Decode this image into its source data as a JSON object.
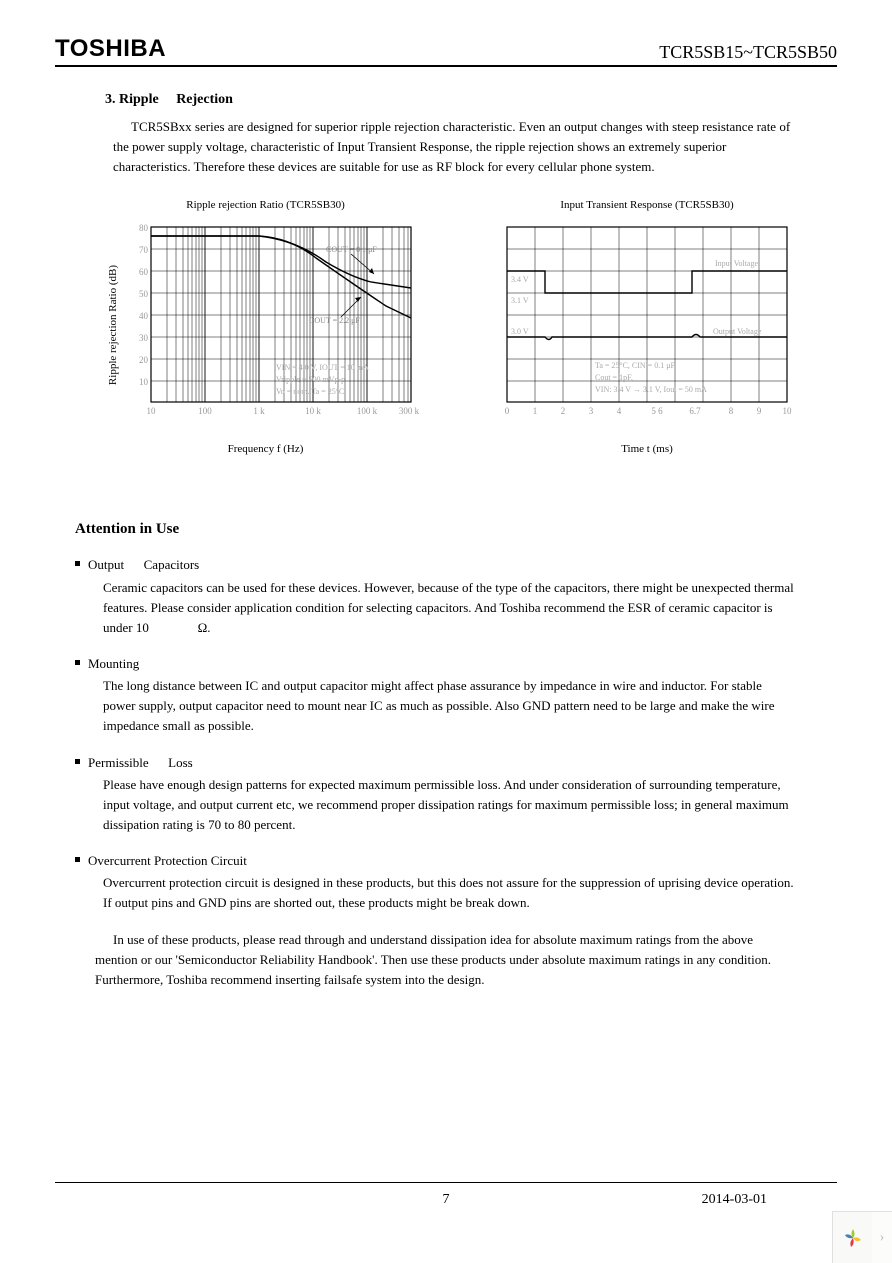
{
  "header": {
    "logo": "TOSHIBA",
    "part": "TCR5SB15~TCR5SB50"
  },
  "section": {
    "number": "3.",
    "title_a": "Ripple",
    "title_b": "Rejection",
    "intro": "TCR5SBxx series are designed for superior ripple rejection characteristic.  Even an output changes with steep resistance rate of the power supply voltage, characteristic of Input Transient Response, the ripple rejection shows an extremely superior characteristics.   Therefore these devices are suitable for use as RF block for every cellular phone system."
  },
  "chart1": {
    "title": "Ripple rejection Ratio (TCR5SB30)",
    "ylabel": "Ripple rejection Ratio (dB)",
    "xlabel": "Frequency f  (Hz)",
    "yticks": [
      "80",
      "70",
      "60",
      "50",
      "40",
      "30",
      "20",
      "10"
    ],
    "xticks": [
      "10",
      "100",
      "1 k",
      "10 k",
      "100 k",
      "300 k"
    ],
    "notes": [
      "VIN = 4.0 V, IOUT = 10 mA",
      "Vripple = 500 mVp-p",
      "Vo = nom.  Ta = 25°C"
    ],
    "arrow1": "COUT = 0.1 μF",
    "arrow2": "COUT = 2.2 μF",
    "curve1_color": "#000000",
    "curve2_color": "#000000",
    "grid_color": "#000000",
    "bg": "#ffffff"
  },
  "chart2": {
    "title": "Input Transient Response (TCR5SB30)",
    "xlabel": "Time  t  (ms)",
    "xticks": [
      "0",
      "1",
      "2",
      "3",
      "4",
      "5 6",
      "6.7",
      "8",
      "9",
      "10"
    ],
    "labels": {
      "input": "Input Voltage",
      "output": "Output Voltage",
      "v34": "3.4 V",
      "v31": "3.1 V",
      "v30": "3.0 V"
    },
    "notes": [
      "Ta = 25°C, CIN = 0.1 μF",
      "Cout = 1pF,",
      "VIN: 3.4 V → 3.1 V, Iout = 50 mA"
    ],
    "grid_color": "#000000",
    "line_color": "#000000",
    "bg": "#ffffff"
  },
  "attention": {
    "heading": "Attention in Use",
    "items": [
      {
        "label_a": "Output",
        "label_b": "Capacitors",
        "body": "Ceramic capacitors can be used for these devices.   However, because of the type of the capacitors, there might be unexpected thermal features.  Please consider application condition for selecting capacitors. And Toshiba recommend the ESR of ceramic capacitor is under 10",
        "unit": "Ω."
      },
      {
        "label_a": "Mounting",
        "label_b": "",
        "body": "The long distance between IC and output capacitor might affect phase assurance by impedance in wire and inductor. For stable power supply, output capacitor need to mount near IC as much as possible.   Also GND pattern need to be large and make the wire impedance small as possible."
      },
      {
        "label_a": "Permissible",
        "label_b": "Loss",
        "body": "Please have enough design patterns for expected maximum permissible loss.  And under consideration of surrounding temperature, input voltage, and output current etc, we recommend proper dissipation ratings for maximum permissible loss; in general maximum dissipation rating is 70 to 80 percent."
      },
      {
        "label_a": "Overcurrent Protection Circuit",
        "label_b": "",
        "body": "Overcurrent protection circuit is designed in these products, but this does not assure for the suppression of uprising device operation. If output pins and GND pins are shorted out, these products might be break down."
      }
    ],
    "summary": "In use of these products, please read through and understand dissipation idea for absolute maximum ratings from the above mention or our 'Semiconductor Reliability Handbook'.  Then use these products under absolute maximum ratings in any condition.   Furthermore, Toshiba recommend inserting failsafe system into the design."
  },
  "footer": {
    "page": "7",
    "date": "2014-03-01"
  }
}
